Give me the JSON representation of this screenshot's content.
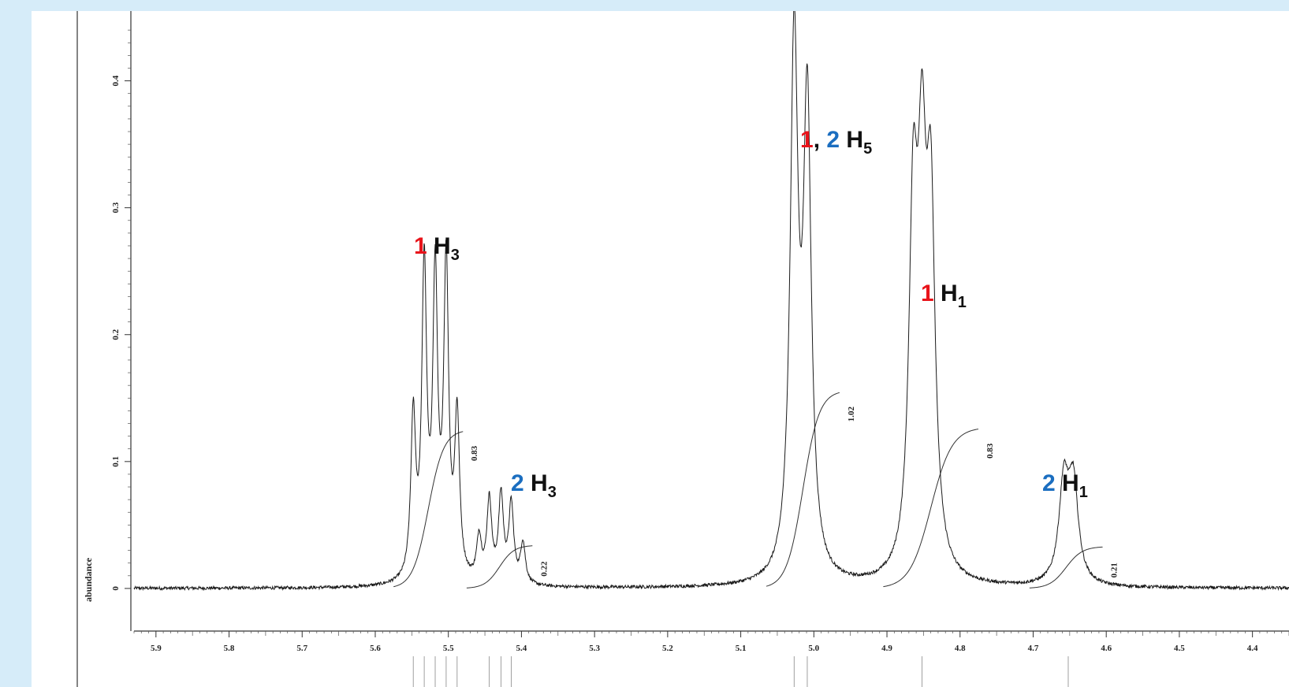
{
  "chart_data": {
    "type": "line",
    "xlabel": "",
    "ylabel": "abundance",
    "xlim": [
      5.93,
      4.35
    ],
    "ylim": [
      -0.028,
      0.455
    ],
    "x_ticks": [
      "5.9",
      "5.8",
      "5.7",
      "5.6",
      "5.5",
      "5.4",
      "5.3",
      "5.2",
      "5.1",
      "5.0",
      "4.9",
      "4.8",
      "4.7",
      "4.6",
      "4.5",
      "4.4"
    ],
    "y_ticks": [
      "0",
      "0.1",
      "0.2",
      "0.3",
      "0.4"
    ],
    "spectrum_peaks": [
      {
        "ppm": 5.548,
        "height": 0.127,
        "width": 0.004
      },
      {
        "ppm": 5.533,
        "height": 0.243,
        "width": 0.004
      },
      {
        "ppm": 5.518,
        "height": 0.233,
        "width": 0.004
      },
      {
        "ppm": 5.503,
        "height": 0.246,
        "width": 0.004
      },
      {
        "ppm": 5.488,
        "height": 0.126,
        "width": 0.004
      },
      {
        "ppm": 5.458,
        "height": 0.034,
        "width": 0.004
      },
      {
        "ppm": 5.444,
        "height": 0.064,
        "width": 0.004
      },
      {
        "ppm": 5.428,
        "height": 0.068,
        "width": 0.004
      },
      {
        "ppm": 5.414,
        "height": 0.062,
        "width": 0.004
      },
      {
        "ppm": 5.398,
        "height": 0.032,
        "width": 0.004
      },
      {
        "ppm": 5.027,
        "height": 0.417,
        "width": 0.0065
      },
      {
        "ppm": 5.009,
        "height": 0.364,
        "width": 0.0065
      },
      {
        "ppm": 4.864,
        "height": 0.27,
        "width": 0.007
      },
      {
        "ppm": 4.852,
        "height": 0.272,
        "width": 0.007
      },
      {
        "ppm": 4.84,
        "height": 0.268,
        "width": 0.007
      },
      {
        "ppm": 4.658,
        "height": 0.077,
        "width": 0.008
      },
      {
        "ppm": 4.645,
        "height": 0.076,
        "width": 0.008
      }
    ],
    "integrals": [
      {
        "label": "0.83",
        "from": 5.575,
        "to": 5.48,
        "base": 0.0,
        "top": 0.125
      },
      {
        "label": "0.22",
        "from": 5.475,
        "to": 5.385,
        "base": 0.0,
        "top": 0.034
      },
      {
        "label": "1.02",
        "from": 5.065,
        "to": 4.965,
        "base": 0.0,
        "top": 0.156
      },
      {
        "label": "0.83",
        "from": 4.905,
        "to": 4.775,
        "base": 0.0,
        "top": 0.127
      },
      {
        "label": "0.21",
        "from": 4.705,
        "to": 4.605,
        "base": 0.0,
        "top": 0.033
      }
    ],
    "assignment_marks_ppm": [
      5.548,
      5.533,
      5.518,
      5.503,
      5.488,
      5.444,
      5.428,
      5.414,
      5.027,
      5.009,
      4.852,
      4.652
    ]
  },
  "annotations": [
    {
      "compounds": [
        {
          "text": "1",
          "color": "#e8141b"
        }
      ],
      "atom": "H",
      "subscript": "3"
    },
    {
      "compounds": [
        {
          "text": "2",
          "color": "#1b6ec0"
        }
      ],
      "atom": "H",
      "subscript": "3"
    },
    {
      "compounds": [
        {
          "text": "1",
          "color": "#e8141b"
        },
        {
          "text": ", ",
          "color": "#111111"
        },
        {
          "text": "2",
          "color": "#1b6ec0"
        }
      ],
      "atom": "H",
      "subscript": "5"
    },
    {
      "compounds": [
        {
          "text": "1",
          "color": "#e8141b"
        }
      ],
      "atom": "H",
      "subscript": "1"
    },
    {
      "compounds": [
        {
          "text": "2",
          "color": "#1b6ec0"
        }
      ],
      "atom": "H",
      "subscript": "1"
    }
  ]
}
